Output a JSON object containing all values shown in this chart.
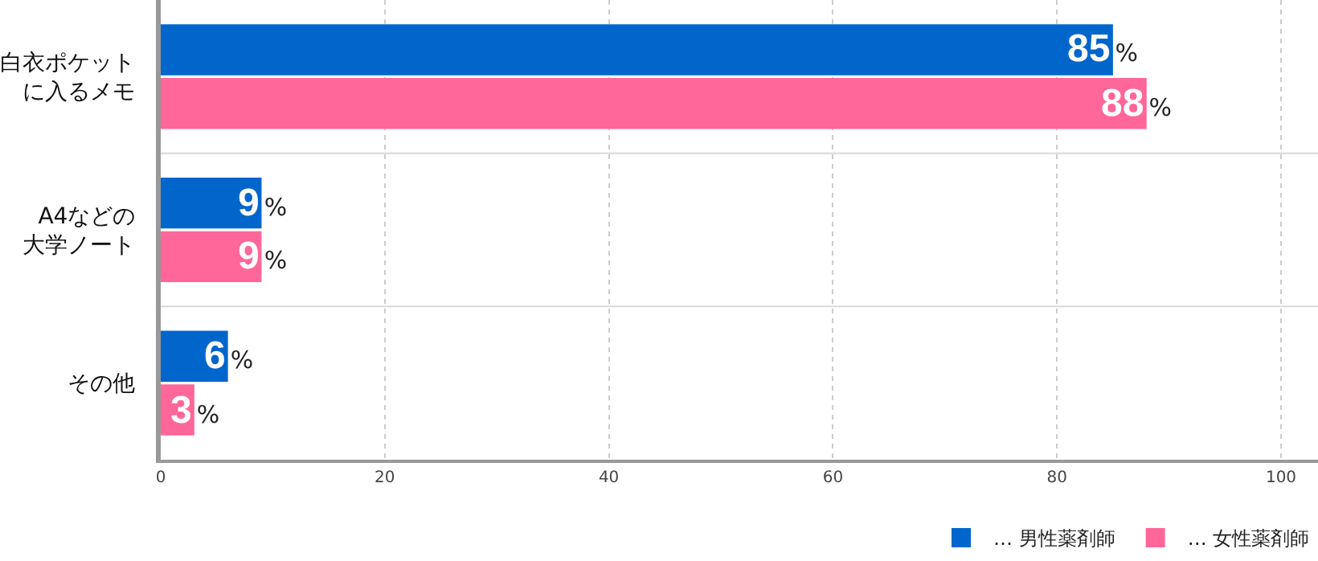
{
  "chart_data": {
    "type": "bar",
    "orientation": "horizontal",
    "categories": [
      "白衣ポケットに入るメモ",
      "A4などの大学ノート",
      "その他"
    ],
    "series": [
      {
        "name": "… 男性薬剤師",
        "color": "#0066cc",
        "values": [
          85,
          9,
          6
        ],
        "value_labels": [
          "85%",
          "9%",
          "6%"
        ]
      },
      {
        "name": "… 女性薬剤師",
        "color": "#ff6699",
        "values": [
          88,
          9,
          3
        ],
        "value_labels": [
          "88%",
          "9%",
          "3%"
        ]
      }
    ],
    "xlim": [
      0,
      103.3
    ],
    "xticks": [
      0,
      20,
      40,
      60,
      80,
      100
    ],
    "grid": "x",
    "legend": "bottom right"
  }
}
